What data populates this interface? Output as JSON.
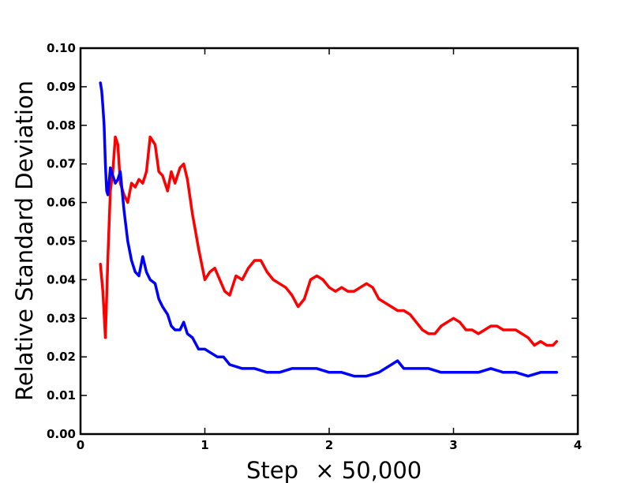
{
  "chart_data": {
    "type": "line",
    "title": "",
    "xlabel": "Step",
    "xlabel_multiplier": "× 50,000",
    "ylabel": "Relative Standard Deviation",
    "xlim": [
      0,
      4
    ],
    "ylim": [
      0,
      0.1
    ],
    "x_ticks": [
      0,
      1,
      2,
      3,
      4
    ],
    "x_tick_labels": [
      "0",
      "1",
      "2",
      "3",
      "4"
    ],
    "y_ticks": [
      0,
      0.01,
      0.02,
      0.03,
      0.04,
      0.05,
      0.06,
      0.07,
      0.08,
      0.09,
      0.1
    ],
    "y_tick_labels": [
      "0.00",
      "0.01",
      "0.02",
      "0.03",
      "0.04",
      "0.05",
      "0.06",
      "0.07",
      "0.08",
      "0.09",
      "0.10"
    ],
    "grid": false,
    "legend": "none",
    "series": [
      {
        "name": "red",
        "color": "#ff0000",
        "x": [
          0.16,
          0.18,
          0.2,
          0.22,
          0.24,
          0.26,
          0.28,
          0.3,
          0.32,
          0.35,
          0.38,
          0.41,
          0.44,
          0.47,
          0.5,
          0.53,
          0.56,
          0.6,
          0.63,
          0.66,
          0.7,
          0.73,
          0.76,
          0.8,
          0.83,
          0.86,
          0.9,
          0.95,
          1.0,
          1.04,
          1.08,
          1.12,
          1.16,
          1.2,
          1.25,
          1.3,
          1.35,
          1.4,
          1.45,
          1.5,
          1.55,
          1.6,
          1.65,
          1.7,
          1.75,
          1.8,
          1.85,
          1.9,
          1.95,
          2.0,
          2.05,
          2.1,
          2.15,
          2.2,
          2.25,
          2.3,
          2.35,
          2.4,
          2.45,
          2.5,
          2.55,
          2.6,
          2.65,
          2.7,
          2.75,
          2.8,
          2.85,
          2.9,
          2.95,
          3.0,
          3.05,
          3.1,
          3.15,
          3.2,
          3.25,
          3.3,
          3.35,
          3.4,
          3.45,
          3.5,
          3.55,
          3.6,
          3.65,
          3.7,
          3.75,
          3.8,
          3.83
        ],
        "y": [
          0.044,
          0.037,
          0.025,
          0.046,
          0.063,
          0.068,
          0.077,
          0.075,
          0.065,
          0.062,
          0.06,
          0.065,
          0.064,
          0.066,
          0.065,
          0.068,
          0.077,
          0.075,
          0.068,
          0.067,
          0.063,
          0.068,
          0.065,
          0.069,
          0.07,
          0.066,
          0.057,
          0.048,
          0.04,
          0.042,
          0.043,
          0.04,
          0.037,
          0.036,
          0.041,
          0.04,
          0.043,
          0.045,
          0.045,
          0.042,
          0.04,
          0.039,
          0.038,
          0.036,
          0.033,
          0.035,
          0.04,
          0.041,
          0.04,
          0.038,
          0.037,
          0.038,
          0.037,
          0.037,
          0.038,
          0.039,
          0.038,
          0.035,
          0.034,
          0.033,
          0.032,
          0.032,
          0.031,
          0.029,
          0.027,
          0.026,
          0.026,
          0.028,
          0.029,
          0.03,
          0.029,
          0.027,
          0.027,
          0.026,
          0.027,
          0.028,
          0.028,
          0.027,
          0.027,
          0.027,
          0.026,
          0.025,
          0.023,
          0.024,
          0.023,
          0.023,
          0.024
        ]
      },
      {
        "name": "blue",
        "color": "#0000ff",
        "x": [
          0.16,
          0.17,
          0.18,
          0.19,
          0.2,
          0.21,
          0.22,
          0.24,
          0.26,
          0.28,
          0.3,
          0.32,
          0.35,
          0.38,
          0.41,
          0.44,
          0.47,
          0.5,
          0.53,
          0.56,
          0.6,
          0.63,
          0.66,
          0.7,
          0.73,
          0.76,
          0.8,
          0.83,
          0.86,
          0.9,
          0.95,
          1.0,
          1.05,
          1.1,
          1.15,
          1.2,
          1.3,
          1.4,
          1.5,
          1.6,
          1.7,
          1.8,
          1.9,
          2.0,
          2.1,
          2.2,
          2.3,
          2.4,
          2.5,
          2.55,
          2.6,
          2.7,
          2.8,
          2.9,
          3.0,
          3.1,
          3.2,
          3.3,
          3.4,
          3.5,
          3.6,
          3.7,
          3.83
        ],
        "y": [
          0.091,
          0.089,
          0.085,
          0.08,
          0.07,
          0.063,
          0.062,
          0.069,
          0.067,
          0.065,
          0.066,
          0.068,
          0.058,
          0.05,
          0.045,
          0.042,
          0.041,
          0.046,
          0.042,
          0.04,
          0.039,
          0.035,
          0.033,
          0.031,
          0.028,
          0.027,
          0.027,
          0.029,
          0.026,
          0.025,
          0.022,
          0.022,
          0.021,
          0.02,
          0.02,
          0.018,
          0.017,
          0.017,
          0.016,
          0.016,
          0.017,
          0.017,
          0.017,
          0.016,
          0.016,
          0.015,
          0.015,
          0.016,
          0.018,
          0.019,
          0.017,
          0.017,
          0.017,
          0.016,
          0.016,
          0.016,
          0.016,
          0.017,
          0.016,
          0.016,
          0.015,
          0.016,
          0.016
        ]
      }
    ]
  }
}
